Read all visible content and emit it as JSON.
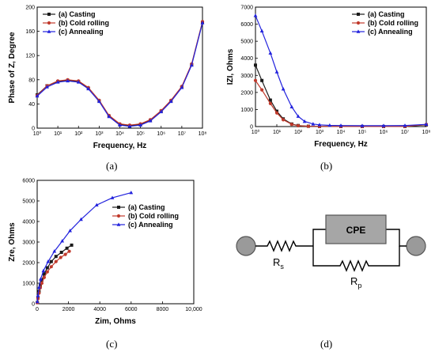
{
  "colors": {
    "casting": "#1a1a1a",
    "cold_rolling": "#c0392b",
    "annealing": "#2222dd"
  },
  "captions": {
    "a": "(a)",
    "b": "(b)",
    "c": "(c)",
    "d": "(d)"
  },
  "circuit": {
    "cpe_label": "CPE",
    "rs_label": "R",
    "rs_sub": "s",
    "rp_label": "R",
    "rp_sub": "p"
  },
  "chart_data": [
    {
      "id": "a",
      "type": "line",
      "xscale": "log",
      "xlim": [
        1,
        100000000
      ],
      "ylim": [
        0,
        200
      ],
      "xlabel": "Frequency, Hz",
      "ylabel": "Phase of Z, Degree",
      "yticks": [
        "0",
        "40",
        "80",
        "120",
        "160",
        "200"
      ],
      "xticks": [
        "10⁰",
        "10¹",
        "10²",
        "10³",
        "10⁴",
        "10⁵",
        "10⁶",
        "10⁷",
        "10⁸"
      ],
      "legend_position": "top-left",
      "grid": false,
      "series": [
        {
          "name": "(a) Casting",
          "x": [
            1,
            3,
            10,
            30,
            100,
            300,
            1000,
            3000,
            10000,
            30000,
            100000,
            300000,
            1000000,
            3000000,
            10000000,
            30000000,
            100000000
          ],
          "y": [
            55,
            70,
            77,
            79,
            77,
            66,
            45,
            20,
            6,
            4,
            6,
            13,
            28,
            45,
            68,
            105,
            175
          ]
        },
        {
          "name": "(b) Cold rolling",
          "x": [
            1,
            3,
            10,
            30,
            100,
            300,
            1000,
            3000,
            10000,
            30000,
            100000,
            300000,
            1000000,
            3000000,
            10000000,
            30000000,
            100000000
          ],
          "y": [
            54,
            70,
            78,
            80,
            78,
            67,
            46,
            21,
            7,
            5,
            7,
            14,
            29,
            46,
            69,
            106,
            176
          ]
        },
        {
          "name": "(c) Annealing",
          "x": [
            1,
            3,
            10,
            30,
            100,
            300,
            1000,
            3000,
            10000,
            30000,
            100000,
            300000,
            1000000,
            3000000,
            10000000,
            30000000,
            100000000
          ],
          "y": [
            53,
            68,
            76,
            78,
            76,
            65,
            44,
            19,
            5,
            3,
            5,
            12,
            27,
            44,
            67,
            104,
            174
          ]
        }
      ]
    },
    {
      "id": "b",
      "type": "line",
      "xscale": "log",
      "xlim": [
        1,
        100000000
      ],
      "ylim": [
        0,
        7000
      ],
      "xlabel": "Frequency, Hz",
      "ylabel": "IZI, Ohms",
      "yticks": [
        "0",
        "1000",
        "2000",
        "3000",
        "4000",
        "5000",
        "6000",
        "7000"
      ],
      "xticks": [
        "10⁰",
        "10¹",
        "10²",
        "10³",
        "10⁴",
        "10⁵",
        "10⁶",
        "10⁷",
        "10⁸"
      ],
      "legend_position": "top-right",
      "grid": false,
      "series": [
        {
          "name": "(a) Casting",
          "x": [
            1,
            2,
            5,
            10,
            20,
            50,
            100,
            300,
            1000,
            10000,
            100000,
            1000000,
            10000000,
            100000000
          ],
          "y": [
            3600,
            2700,
            1550,
            900,
            450,
            150,
            60,
            20,
            10,
            5,
            5,
            5,
            5,
            100
          ]
        },
        {
          "name": "(b) Cold rolling",
          "x": [
            1,
            2,
            5,
            10,
            20,
            50,
            100,
            300,
            1000,
            10000,
            100000,
            1000000,
            10000000,
            100000000
          ],
          "y": [
            2700,
            2150,
            1350,
            800,
            400,
            130,
            50,
            15,
            8,
            5,
            5,
            5,
            5,
            120
          ]
        },
        {
          "name": "(c) Annealing",
          "x": [
            1,
            2,
            5,
            10,
            20,
            50,
            100,
            200,
            500,
            1000,
            3000,
            10000,
            100000,
            1000000,
            10000000,
            100000000
          ],
          "y": [
            6500,
            5600,
            4300,
            3200,
            2200,
            1150,
            600,
            300,
            150,
            100,
            70,
            60,
            50,
            50,
            60,
            130
          ]
        }
      ]
    },
    {
      "id": "c",
      "type": "line",
      "xscale": "linear",
      "xlim": [
        0,
        10000
      ],
      "ylim": [
        0,
        6000
      ],
      "xlabel": "Zim, Ohms",
      "ylabel": "Zre, Ohms",
      "yticks": [
        "0",
        "1000",
        "2000",
        "3000",
        "4000",
        "5000",
        "6000"
      ],
      "xticks": [
        "0",
        "2000",
        "4000",
        "6000",
        "8000",
        "10,000"
      ],
      "legend_position": "center-right",
      "grid": false,
      "series": [
        {
          "name": "(a) Casting",
          "x": [
            10,
            50,
            120,
            200,
            300,
            450,
            650,
            900,
            1200,
            1550,
            1900,
            2200
          ],
          "y": [
            60,
            280,
            600,
            900,
            1150,
            1450,
            1750,
            2050,
            2300,
            2500,
            2700,
            2850
          ]
        },
        {
          "name": "(b) Cold rolling",
          "x": [
            10,
            50,
            120,
            200,
            300,
            450,
            650,
            900,
            1200,
            1500,
            1800,
            2050
          ],
          "y": [
            50,
            250,
            520,
            780,
            1000,
            1280,
            1550,
            1800,
            2050,
            2250,
            2400,
            2550
          ]
        },
        {
          "name": "(c) Annealing",
          "x": [
            10,
            50,
            120,
            220,
            400,
            700,
            1100,
            1600,
            2100,
            2800,
            3800,
            4800,
            6000
          ],
          "y": [
            100,
            400,
            800,
            1200,
            1600,
            2050,
            2550,
            3050,
            3550,
            4100,
            4800,
            5150,
            5400
          ]
        }
      ]
    }
  ]
}
